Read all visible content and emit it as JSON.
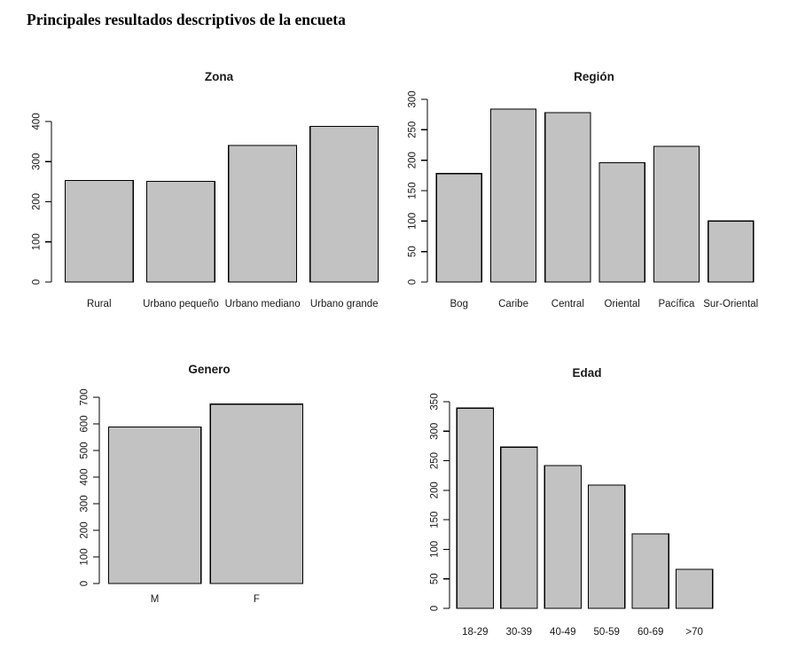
{
  "page_title": "Principales resultados descriptivos de la encueta",
  "colors": {
    "background": "#ffffff",
    "bar_fill": "#c2c2c2",
    "bar_stroke": "#000000",
    "axis": "#000000",
    "text": "#1a1a1a"
  },
  "chart_data": [
    {
      "id": "zona",
      "type": "bar",
      "title": "Zona",
      "categories": [
        "Rural",
        "Urbano pequeño",
        "Urbano mediano",
        "Urbano grande"
      ],
      "values": [
        253,
        251,
        340,
        388
      ],
      "xlabel": "",
      "ylabel": "",
      "ylim": [
        0,
        400
      ],
      "ytick_step": 100,
      "grid": false,
      "legend": "none",
      "bar_color_name": "gray"
    },
    {
      "id": "region",
      "type": "bar",
      "title": "Región",
      "categories": [
        "Bog",
        "Caribe",
        "Central",
        "Oriental",
        "Pacífica",
        "Sur-Oriental"
      ],
      "values": [
        178,
        284,
        278,
        196,
        223,
        100
      ],
      "xlabel": "",
      "ylabel": "",
      "ylim": [
        0,
        300
      ],
      "ytick_step": 50,
      "grid": false,
      "legend": "none",
      "bar_color_name": "gray"
    },
    {
      "id": "genero",
      "type": "bar",
      "title": "Genero",
      "categories": [
        "M",
        "F"
      ],
      "values": [
        588,
        674
      ],
      "xlabel": "",
      "ylabel": "",
      "ylim": [
        0,
        700
      ],
      "ytick_step": 100,
      "grid": false,
      "legend": "none",
      "bar_color_name": "gray"
    },
    {
      "id": "edad",
      "type": "bar",
      "title": "Edad",
      "categories": [
        "18-29",
        "30-39",
        "40-49",
        "50-59",
        "60-69",
        ">70"
      ],
      "values": [
        339,
        273,
        242,
        209,
        126,
        66
      ],
      "xlabel": "",
      "ylabel": "",
      "ylim": [
        0,
        350
      ],
      "ytick_step": 50,
      "grid": false,
      "legend": "none",
      "bar_color_name": "gray"
    }
  ]
}
